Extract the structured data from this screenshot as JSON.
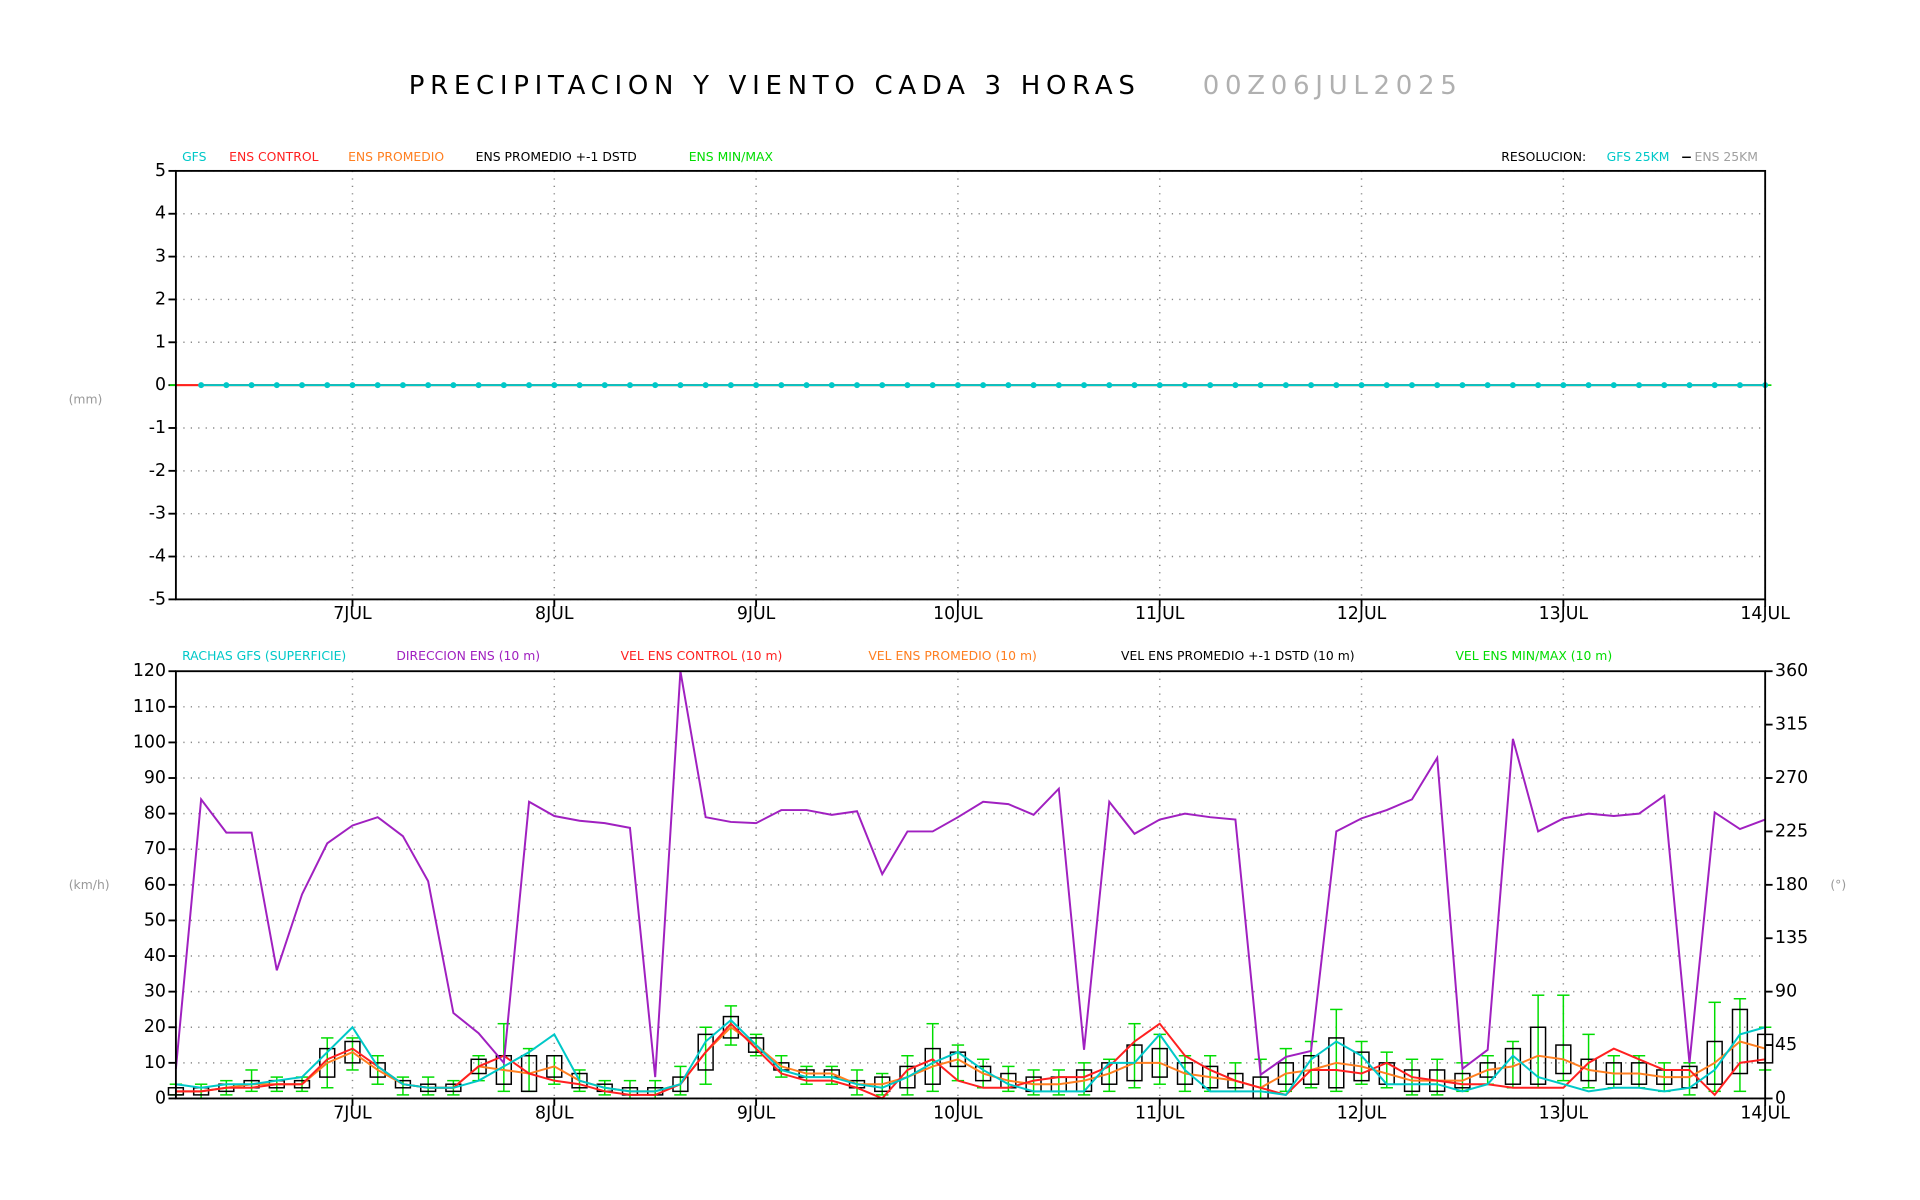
{
  "chart_data": [
    {
      "type": "line",
      "title": "PRECIPITACION Y VIENTO CADA 3 HORAS",
      "subtitle": "00Z06JUL2025",
      "ylabel": "(mm)",
      "grid": true,
      "resolution": {
        "label": "RESOLUCION:",
        "gfs": "GFS 25KM",
        "ens": "ENS 25KM"
      },
      "x": [
        3,
        6,
        9,
        12,
        15,
        18,
        21,
        24,
        27,
        30,
        33,
        36,
        39,
        42,
        45,
        48,
        51,
        54,
        57,
        60,
        63,
        66,
        69,
        72,
        75,
        78,
        81,
        84,
        87,
        90,
        93,
        96,
        99,
        102,
        105,
        108,
        111,
        114,
        117,
        120,
        123,
        126,
        129,
        132,
        135,
        138,
        141,
        144,
        147,
        150,
        153,
        156,
        159,
        162,
        165,
        168,
        171,
        174,
        177,
        180,
        183,
        186,
        189,
        192
      ],
      "xlim": [
        3,
        192
      ],
      "xticks": [
        {
          "value": 24,
          "label": "7JUL"
        },
        {
          "value": 48,
          "label": "8JUL"
        },
        {
          "value": 72,
          "label": "9JUL"
        },
        {
          "value": 96,
          "label": "10JUL"
        },
        {
          "value": 120,
          "label": "11JUL"
        },
        {
          "value": 144,
          "label": "12JUL"
        },
        {
          "value": 168,
          "label": "13JUL"
        },
        {
          "value": 192,
          "label": "14JUL"
        }
      ],
      "ylim": [
        -5,
        5
      ],
      "yticks": [
        -5,
        -4,
        -3,
        -2,
        -1,
        0,
        1,
        2,
        3,
        4,
        5
      ],
      "series": [
        {
          "name": "GFS",
          "color": "#00c8c8",
          "style": "line",
          "markers": true,
          "values": [
            null,
            0,
            0,
            0,
            0,
            0,
            0,
            0,
            0,
            0,
            0,
            0,
            0,
            0,
            0,
            0,
            0,
            0,
            0,
            0,
            0,
            0,
            0,
            0,
            0,
            0,
            0,
            0,
            0,
            0,
            0,
            0,
            0,
            0,
            0,
            0,
            0,
            0,
            0,
            0,
            0,
            0,
            0,
            0,
            0,
            0,
            0,
            0,
            0,
            0,
            0,
            0,
            0,
            0,
            0,
            0,
            0,
            0,
            0,
            0,
            0,
            0,
            0,
            0
          ]
        },
        {
          "name": "ENS CONTROL",
          "color": "#ff2020",
          "style": "line",
          "values": [
            0,
            0,
            0,
            0,
            0,
            0,
            0,
            0,
            0,
            0,
            0,
            0,
            0,
            0,
            0,
            0,
            0,
            0,
            0,
            0,
            0,
            0,
            0,
            0,
            0,
            0,
            0,
            0,
            0,
            0,
            0,
            0,
            0,
            0,
            0,
            0,
            0,
            0,
            0,
            0,
            0,
            0,
            0,
            0,
            0,
            0,
            0,
            0,
            0,
            0,
            0,
            0,
            0,
            0,
            0,
            0,
            0,
            0,
            0,
            0,
            0,
            0,
            0,
            0
          ]
        },
        {
          "name": "ENS PROMEDIO",
          "color": "#ff7f20",
          "style": "line",
          "values": [
            0,
            0,
            0,
            0,
            0,
            0,
            0,
            0,
            0,
            0,
            0,
            0,
            0,
            0,
            0,
            0,
            0,
            0,
            0,
            0,
            0,
            0,
            0,
            0,
            0,
            0,
            0,
            0,
            0,
            0,
            0,
            0,
            0,
            0,
            0,
            0,
            0,
            0,
            0,
            0,
            0,
            0,
            0,
            0,
            0,
            0,
            0,
            0,
            0,
            0,
            0,
            0,
            0,
            0,
            0,
            0,
            0,
            0,
            0,
            0,
            0,
            0,
            0,
            0
          ]
        },
        {
          "name": "ENS PROMEDIO +-1 DSTD",
          "color": "#000000",
          "style": "box",
          "values": [
            0,
            0,
            0,
            0,
            0,
            0,
            0,
            0,
            0,
            0,
            0,
            0,
            0,
            0,
            0,
            0,
            0,
            0,
            0,
            0,
            0,
            0,
            0,
            0,
            0,
            0,
            0,
            0,
            0,
            0,
            0,
            0,
            0,
            0,
            0,
            0,
            0,
            0,
            0,
            0,
            0,
            0,
            0,
            0,
            0,
            0,
            0,
            0,
            0,
            0,
            0,
            0,
            0,
            0,
            0,
            0,
            0,
            0,
            0,
            0,
            0,
            0,
            0,
            0
          ]
        },
        {
          "name": "ENS MIN/MAX",
          "color": "#00dd00",
          "style": "errorbar",
          "min": [
            0,
            0,
            0,
            0,
            0,
            0,
            0,
            0,
            0,
            0,
            0,
            0,
            0,
            0,
            0,
            0,
            0,
            0,
            0,
            0,
            0,
            0,
            0,
            0,
            0,
            0,
            0,
            0,
            0,
            0,
            0,
            0,
            0,
            0,
            0,
            0,
            0,
            0,
            0,
            0,
            0,
            0,
            0,
            0,
            0,
            0,
            0,
            0,
            0,
            0,
            0,
            0,
            0,
            0,
            0,
            0,
            0,
            0,
            0,
            0,
            0,
            0,
            0,
            0
          ],
          "max": [
            0,
            0,
            0,
            0,
            0,
            0,
            0,
            0,
            0,
            0,
            0,
            0,
            0,
            0,
            0,
            0,
            0,
            0,
            0,
            0,
            0,
            0,
            0,
            0,
            0,
            0,
            0,
            0,
            0,
            0,
            0,
            0,
            0,
            0,
            0,
            0,
            0,
            0,
            0,
            0,
            0,
            0,
            0,
            0,
            0,
            0,
            0,
            0,
            0,
            0,
            0,
            0,
            0,
            0,
            0,
            0,
            0,
            0,
            0,
            0,
            0,
            0,
            0,
            0
          ]
        }
      ]
    },
    {
      "type": "line",
      "ylabel": "(km/h)",
      "y2label": "(°)",
      "grid": true,
      "x": [
        3,
        6,
        9,
        12,
        15,
        18,
        21,
        24,
        27,
        30,
        33,
        36,
        39,
        42,
        45,
        48,
        51,
        54,
        57,
        60,
        63,
        66,
        69,
        72,
        75,
        78,
        81,
        84,
        87,
        90,
        93,
        96,
        99,
        102,
        105,
        108,
        111,
        114,
        117,
        120,
        123,
        126,
        129,
        132,
        135,
        138,
        141,
        144,
        147,
        150,
        153,
        156,
        159,
        162,
        165,
        168,
        171,
        174,
        177,
        180,
        183,
        186,
        189,
        192
      ],
      "xlim": [
        3,
        192
      ],
      "xticks": [
        {
          "value": 24,
          "label": "7JUL"
        },
        {
          "value": 48,
          "label": "8JUL"
        },
        {
          "value": 72,
          "label": "9JUL"
        },
        {
          "value": 96,
          "label": "10JUL"
        },
        {
          "value": 120,
          "label": "11JUL"
        },
        {
          "value": 144,
          "label": "12JUL"
        },
        {
          "value": 168,
          "label": "13JUL"
        },
        {
          "value": 192,
          "label": "14JUL"
        }
      ],
      "ylim": [
        0,
        120
      ],
      "yticks": [
        0,
        10,
        20,
        30,
        40,
        50,
        60,
        70,
        80,
        90,
        100,
        110,
        120
      ],
      "y2lim": [
        0,
        360
      ],
      "y2ticks": [
        0,
        45,
        90,
        135,
        180,
        225,
        270,
        315,
        360
      ],
      "series": [
        {
          "name": "RACHAS GFS (SUPERFICIE)",
          "color": "#00c8c8",
          "style": "line",
          "values": [
            4,
            3,
            4,
            4,
            5,
            6,
            13,
            20,
            9,
            4,
            3,
            3,
            5,
            9,
            13,
            18,
            5,
            3,
            2,
            2,
            4,
            16,
            22,
            15,
            8,
            6,
            6,
            4,
            3,
            6,
            10,
            13,
            8,
            4,
            2,
            2,
            2,
            10,
            10,
            18,
            8,
            2,
            2,
            2,
            1,
            11,
            16,
            12,
            4,
            4,
            4,
            2,
            4,
            12,
            6,
            4,
            2,
            3,
            3,
            2,
            3,
            8,
            18,
            20
          ]
        },
        {
          "name": "DIRECCION ENS (10 m)",
          "color": "#a020c0",
          "style": "line",
          "axis": "y2",
          "values": [
            25,
            252,
            224,
            224,
            108,
            172,
            215,
            230,
            237,
            221,
            183,
            72,
            55,
            30,
            250,
            238,
            234,
            232,
            228,
            18,
            360,
            237,
            233,
            232,
            243,
            243,
            239,
            242,
            189,
            225,
            225,
            237,
            250,
            248,
            239,
            261,
            41,
            250,
            223,
            235,
            240,
            237,
            235,
            20,
            35,
            40,
            225,
            236,
            243,
            252,
            287,
            25,
            41,
            303,
            225,
            236,
            240,
            238,
            240,
            255,
            30,
            241,
            227,
            235
          ]
        },
        {
          "name": "VEL ENS CONTROL (10 m)",
          "color": "#ff2020",
          "style": "line",
          "values": [
            2,
            2,
            3,
            3,
            4,
            4,
            11,
            14,
            9,
            4,
            3,
            3,
            9,
            12,
            7,
            5,
            4,
            2,
            1,
            1,
            4,
            13,
            21,
            14,
            7,
            5,
            5,
            3,
            0,
            8,
            11,
            5,
            3,
            3,
            5,
            6,
            6,
            9,
            16,
            21,
            12,
            8,
            5,
            3,
            1,
            8,
            8,
            7,
            10,
            6,
            5,
            4,
            4,
            3,
            3,
            3,
            10,
            14,
            11,
            8,
            8,
            1,
            10,
            11
          ]
        },
        {
          "name": "VEL ENS PROMEDIO (10 m)",
          "color": "#ff7f20",
          "style": "line",
          "values": [
            2,
            2,
            3,
            4,
            4,
            4,
            10,
            13,
            8,
            4,
            3,
            3,
            9,
            8,
            7,
            9,
            5,
            3,
            2,
            2,
            4,
            13,
            20,
            15,
            9,
            7,
            7,
            4,
            4,
            6,
            9,
            11,
            7,
            5,
            4,
            4,
            5,
            7,
            10,
            10,
            7,
            6,
            5,
            3,
            7,
            8,
            10,
            9,
            7,
            5,
            5,
            5,
            8,
            9,
            12,
            11,
            8,
            7,
            7,
            6,
            6,
            10,
            16,
            14
          ]
        },
        {
          "name": "VEL ENS PROMEDIO +-1 DSTD (10 m)",
          "color": "#000000",
          "style": "box",
          "values": [
            1,
            1,
            1,
            1,
            1,
            1,
            4,
            3,
            2,
            1,
            1,
            1,
            2,
            4,
            5,
            3,
            2,
            1,
            1,
            1,
            2,
            5,
            3,
            2,
            1,
            1,
            1,
            1,
            2,
            3,
            5,
            2,
            2,
            2,
            2,
            2,
            3,
            3,
            5,
            4,
            3,
            3,
            2,
            3,
            3,
            4,
            7,
            4,
            3,
            3,
            3,
            2,
            2,
            5,
            8,
            4,
            3,
            3,
            3,
            2,
            3,
            6,
            9,
            4
          ]
        },
        {
          "name": "VEL ENS MIN/MAX (10 m)",
          "color": "#00dd00",
          "style": "errorbar",
          "min": [
            1,
            0,
            1,
            2,
            2,
            2,
            3,
            8,
            4,
            1,
            1,
            1,
            5,
            2,
            2,
            4,
            2,
            1,
            0,
            0,
            1,
            4,
            15,
            12,
            6,
            4,
            4,
            1,
            1,
            1,
            2,
            5,
            3,
            2,
            1,
            1,
            1,
            2,
            3,
            4,
            2,
            2,
            2,
            0,
            2,
            3,
            2,
            4,
            3,
            1,
            1,
            2,
            4,
            3,
            3,
            5,
            3,
            3,
            3,
            2,
            1,
            2,
            2,
            8
          ],
          "max": [
            4,
            4,
            5,
            8,
            6,
            6,
            17,
            17,
            12,
            6,
            6,
            5,
            12,
            21,
            14,
            12,
            8,
            5,
            5,
            5,
            9,
            20,
            26,
            18,
            12,
            9,
            9,
            8,
            7,
            12,
            21,
            15,
            11,
            9,
            8,
            8,
            10,
            11,
            21,
            18,
            12,
            12,
            10,
            11,
            14,
            16,
            25,
            16,
            13,
            11,
            11,
            10,
            12,
            16,
            29,
            29,
            18,
            12,
            12,
            10,
            10,
            27,
            28,
            20
          ]
        }
      ]
    }
  ]
}
